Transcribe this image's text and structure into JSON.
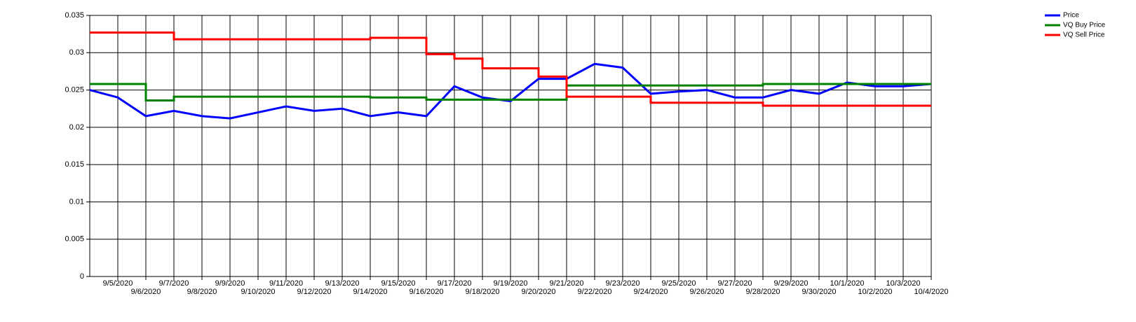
{
  "chart_data": {
    "type": "line",
    "xlim": [
      "2020-09-04",
      "2020-10-04"
    ],
    "xticks": [
      {
        "value": "2020-09-05",
        "label": "9/5/2020"
      },
      {
        "value": "2020-09-06",
        "label": "9/6/2020"
      },
      {
        "value": "2020-09-07",
        "label": "9/7/2020"
      },
      {
        "value": "2020-09-08",
        "label": "9/8/2020"
      },
      {
        "value": "2020-09-09",
        "label": "9/9/2020"
      },
      {
        "value": "2020-09-10",
        "label": "9/10/2020"
      },
      {
        "value": "2020-09-11",
        "label": "9/11/2020"
      },
      {
        "value": "2020-09-12",
        "label": "9/12/2020"
      },
      {
        "value": "2020-09-13",
        "label": "9/13/2020"
      },
      {
        "value": "2020-09-14",
        "label": "9/14/2020"
      },
      {
        "value": "2020-09-15",
        "label": "9/15/2020"
      },
      {
        "value": "2020-09-16",
        "label": "9/16/2020"
      },
      {
        "value": "2020-09-17",
        "label": "9/17/2020"
      },
      {
        "value": "2020-09-18",
        "label": "9/18/2020"
      },
      {
        "value": "2020-09-19",
        "label": "9/19/2020"
      },
      {
        "value": "2020-09-20",
        "label": "9/20/2020"
      },
      {
        "value": "2020-09-21",
        "label": "9/21/2020"
      },
      {
        "value": "2020-09-22",
        "label": "9/22/2020"
      },
      {
        "value": "2020-09-23",
        "label": "9/23/2020"
      },
      {
        "value": "2020-09-24",
        "label": "9/24/2020"
      },
      {
        "value": "2020-09-25",
        "label": "9/25/2020"
      },
      {
        "value": "2020-09-26",
        "label": "9/26/2020"
      },
      {
        "value": "2020-09-27",
        "label": "9/27/2020"
      },
      {
        "value": "2020-09-28",
        "label": "9/28/2020"
      },
      {
        "value": "2020-09-29",
        "label": "9/29/2020"
      },
      {
        "value": "2020-09-30",
        "label": "9/30/2020"
      },
      {
        "value": "2020-10-01",
        "label": "10/1/2020"
      },
      {
        "value": "2020-10-02",
        "label": "10/2/2020"
      },
      {
        "value": "2020-10-03",
        "label": "10/3/2020"
      },
      {
        "value": "2020-10-04",
        "label": "10/4/2020"
      }
    ],
    "ylim": [
      0,
      0.035
    ],
    "yticks": [
      0,
      0.005,
      0.01,
      0.015,
      0.02,
      0.025,
      0.03,
      0.035
    ],
    "grid": true,
    "legend": "top-right",
    "series": [
      {
        "name": "Price",
        "color": "#0000ff",
        "step": false,
        "x": [
          "2020-09-04",
          "2020-09-05",
          "2020-09-06",
          "2020-09-07",
          "2020-09-08",
          "2020-09-09",
          "2020-09-10",
          "2020-09-11",
          "2020-09-12",
          "2020-09-13",
          "2020-09-14",
          "2020-09-15",
          "2020-09-16",
          "2020-09-17",
          "2020-09-18",
          "2020-09-19",
          "2020-09-20",
          "2020-09-21",
          "2020-09-22",
          "2020-09-23",
          "2020-09-24",
          "2020-09-25",
          "2020-09-26",
          "2020-09-27",
          "2020-09-28",
          "2020-09-29",
          "2020-09-30",
          "2020-10-01",
          "2020-10-02",
          "2020-10-03",
          "2020-10-04"
        ],
        "values": [
          0.025,
          0.024,
          0.0215,
          0.0222,
          0.0215,
          0.0212,
          0.022,
          0.0228,
          0.0222,
          0.0225,
          0.0215,
          0.022,
          0.0215,
          0.0255,
          0.024,
          0.0235,
          0.0265,
          0.0265,
          0.0285,
          0.028,
          0.0245,
          0.0248,
          0.025,
          0.024,
          0.024,
          0.025,
          0.0245,
          0.026,
          0.0255,
          0.0255,
          0.0258
        ]
      },
      {
        "name": "VQ Buy Price",
        "color": "#008000",
        "step": true,
        "x": [
          "2020-09-04",
          "2020-09-06",
          "2020-09-07",
          "2020-09-14",
          "2020-09-16",
          "2020-09-21",
          "2020-09-28",
          "2020-10-04"
        ],
        "values": [
          0.0258,
          0.0236,
          0.0241,
          0.024,
          0.0237,
          0.0256,
          0.0258,
          0.0258
        ]
      },
      {
        "name": "VQ Sell Price",
        "color": "#ff0000",
        "step": true,
        "x": [
          "2020-09-04",
          "2020-09-07",
          "2020-09-14",
          "2020-09-16",
          "2020-09-17",
          "2020-09-18",
          "2020-09-20",
          "2020-09-21",
          "2020-09-24",
          "2020-09-28",
          "2020-10-04"
        ],
        "values": [
          0.0327,
          0.0318,
          0.032,
          0.0298,
          0.0292,
          0.0279,
          0.0268,
          0.0241,
          0.0233,
          0.0229,
          0.0229
        ]
      }
    ]
  }
}
